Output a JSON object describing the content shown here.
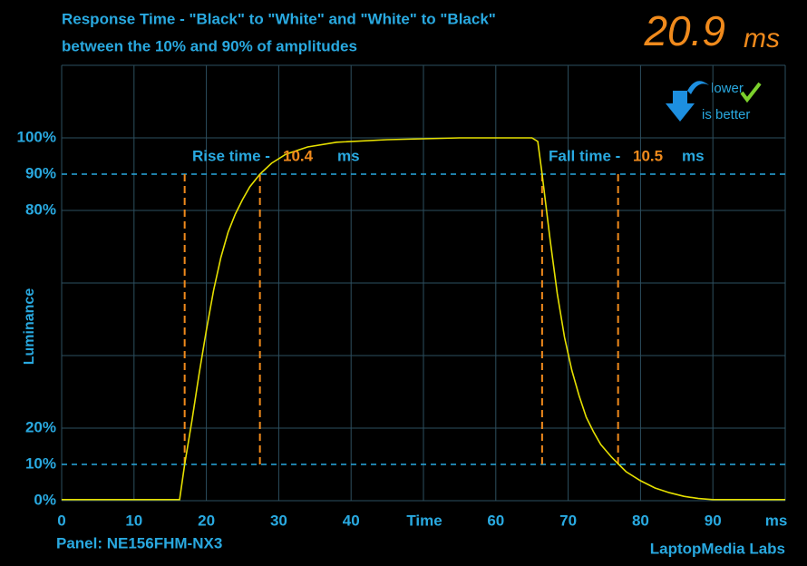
{
  "chart_data": {
    "type": "line",
    "title": [
      "Response Time - \"Black\" to \"White\" and \"White\" to \"Black\"",
      "between the 10% and 90% of amplitudes"
    ],
    "result": {
      "value": 20.9,
      "unit": "ms"
    },
    "badge": [
      "lower",
      "is better"
    ],
    "x_label": "Time",
    "y_label": "Luminance",
    "x": [
      0,
      16.3,
      17,
      18,
      19,
      20,
      21,
      22,
      23,
      24,
      25,
      26,
      27.4,
      29,
      31,
      34,
      38,
      45,
      55,
      65,
      65.8,
      66.4,
      67.5,
      68.5,
      69.5,
      70.5,
      71.5,
      72.5,
      73.5,
      74.5,
      76,
      77,
      78,
      80,
      82,
      84,
      86,
      88,
      90,
      100
    ],
    "series": [
      {
        "color": "#e6e000",
        "values": [
          0.3,
          0.3,
          10,
          22,
          35,
          47,
          58,
          67,
          74,
          79,
          83,
          86.5,
          90,
          93,
          95.5,
          97.5,
          98.8,
          99.5,
          100,
          100,
          99,
          90,
          72,
          57,
          45,
          36,
          29,
          23,
          19,
          15.5,
          12,
          10,
          8,
          5.5,
          3.5,
          2.2,
          1.2,
          0.6,
          0.3,
          0.3
        ]
      }
    ],
    "xlim": [
      0,
      100
    ],
    "ylim": [
      0,
      120
    ],
    "xticks": [
      0,
      10,
      20,
      30,
      40,
      60,
      70,
      80,
      90,
      {
        "value": 100,
        "label": "ms"
      }
    ],
    "yticks": [
      {
        "value": 0,
        "label": "0%"
      },
      {
        "value": 10,
        "label": "10%"
      },
      {
        "value": 20,
        "label": "20%"
      },
      {
        "value": 80,
        "label": "80%"
      },
      {
        "value": 90,
        "label": "90%"
      },
      {
        "value": 100,
        "label": "100%"
      }
    ],
    "xgrid": [
      0,
      10,
      20,
      30,
      40,
      50,
      60,
      70,
      80,
      90,
      100
    ],
    "ygrid": [
      0,
      20,
      40,
      60,
      80,
      100,
      120
    ],
    "thresholds": [
      10,
      90
    ],
    "markers": [
      17,
      27.4,
      66.4,
      76.9
    ],
    "annotations": [
      {
        "text": "Rise time -",
        "value": 10.4,
        "unit": "ms"
      },
      {
        "text": "Fall time -",
        "value": 10.5,
        "unit": "ms"
      }
    ],
    "panel": "Panel: NE156FHM-NX3",
    "credit": "LaptopMedia Labs"
  }
}
